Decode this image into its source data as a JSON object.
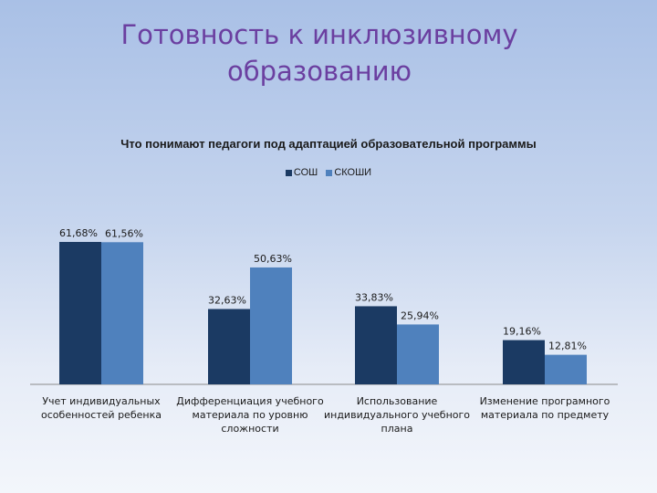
{
  "slide": {
    "title_line1": "Готовность к инклюзивному",
    "title_line2": "образованию"
  },
  "chart_data": {
    "type": "bar",
    "title": "Что понимают педагоги под адаптацией образовательной программы",
    "legend_position": "top",
    "grid": false,
    "ylim": [
      0,
      70
    ],
    "categories": [
      [
        "Учет индивидуальных",
        "особенностей ребенка"
      ],
      [
        "Дифференциация учебного",
        "материала по уровню",
        "сложности"
      ],
      [
        "Использование",
        "индивидуального учебного",
        "плана"
      ],
      [
        "Изменение програмного",
        "материала по предмету"
      ]
    ],
    "series": [
      {
        "name": "СОШ",
        "color": "#1b3a63",
        "values": [
          61.68,
          32.63,
          33.83,
          19.16
        ],
        "labels": [
          "61,68%",
          "32,63%",
          "33,83%",
          "19,16%"
        ]
      },
      {
        "name": "СКОШИ",
        "color": "#4f81bd",
        "values": [
          61.56,
          50.63,
          25.94,
          12.81
        ],
        "labels": [
          "61,56%",
          "50,63%",
          "25,94%",
          "12,81%"
        ]
      }
    ]
  }
}
